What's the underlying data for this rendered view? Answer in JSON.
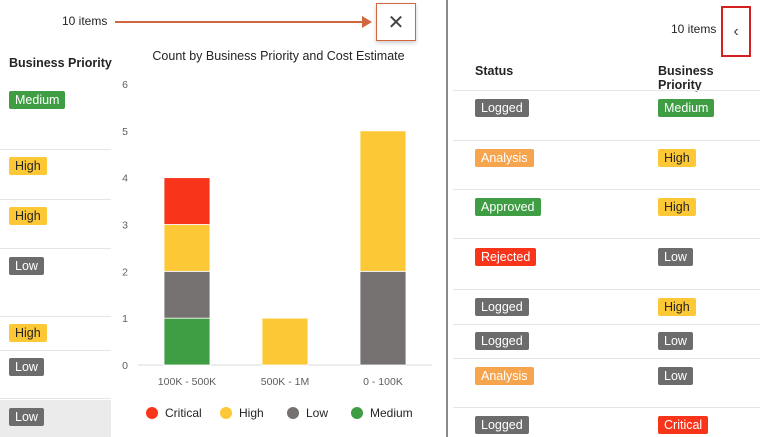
{
  "left_panel": {
    "items_count": "10 items",
    "close_glyph": "✕",
    "column_header": "Business Priority",
    "rows": [
      {
        "priority": "Medium",
        "tone": "medium"
      },
      {
        "priority": "High",
        "tone": "high"
      },
      {
        "priority": "High",
        "tone": "high"
      },
      {
        "priority": "Low",
        "tone": "low"
      },
      {
        "priority": "High",
        "tone": "high"
      },
      {
        "priority": "Low",
        "tone": "low"
      },
      {
        "priority": "Low",
        "tone": "low"
      }
    ]
  },
  "chart_data": {
    "type": "bar",
    "stacked": true,
    "title": "Count by Business Priority and Cost Estimate",
    "xlabel": "",
    "ylabel": "",
    "categories": [
      "100K - 500K",
      "500K - 1M",
      "0 - 100K"
    ],
    "ylim": [
      0,
      6
    ],
    "yticks": [
      "0",
      "1",
      "2",
      "3",
      "4",
      "5",
      "6"
    ],
    "grid": false,
    "legend_position": "bottom",
    "series": [
      {
        "name": "Medium",
        "color": "#3f9e44",
        "values": [
          1,
          0,
          0
        ]
      },
      {
        "name": "Low",
        "color": "#767171",
        "values": [
          1,
          0,
          2
        ]
      },
      {
        "name": "High",
        "color": "#fdc835",
        "values": [
          1,
          1,
          3
        ]
      },
      {
        "name": "Critical",
        "color": "#f8351b",
        "values": [
          1,
          0,
          0
        ]
      }
    ],
    "legend_order": [
      "Critical",
      "High",
      "Low",
      "Medium"
    ]
  },
  "right_panel": {
    "items_count": "10 items",
    "expand_glyph": "‹",
    "headers": {
      "status": "Status",
      "priority": "Business Priority"
    },
    "rows": [
      {
        "status": "Logged",
        "status_tone": "logged",
        "priority": "Medium",
        "priority_tone": "medium"
      },
      {
        "status": "Analysis",
        "status_tone": "analysis",
        "priority": "High",
        "priority_tone": "high"
      },
      {
        "status": "Approved",
        "status_tone": "approved",
        "priority": "High",
        "priority_tone": "high"
      },
      {
        "status": "Rejected",
        "status_tone": "rejected",
        "priority": "Low",
        "priority_tone": "low"
      },
      {
        "status": "Logged",
        "status_tone": "logged",
        "priority": "High",
        "priority_tone": "high"
      },
      {
        "status": "Logged",
        "status_tone": "logged",
        "priority": "Low",
        "priority_tone": "low"
      },
      {
        "status": "Analysis",
        "status_tone": "analysis",
        "priority": "Low",
        "priority_tone": "low"
      },
      {
        "status": "Logged",
        "status_tone": "logged",
        "priority": "Critical",
        "priority_tone": "critical"
      }
    ]
  }
}
